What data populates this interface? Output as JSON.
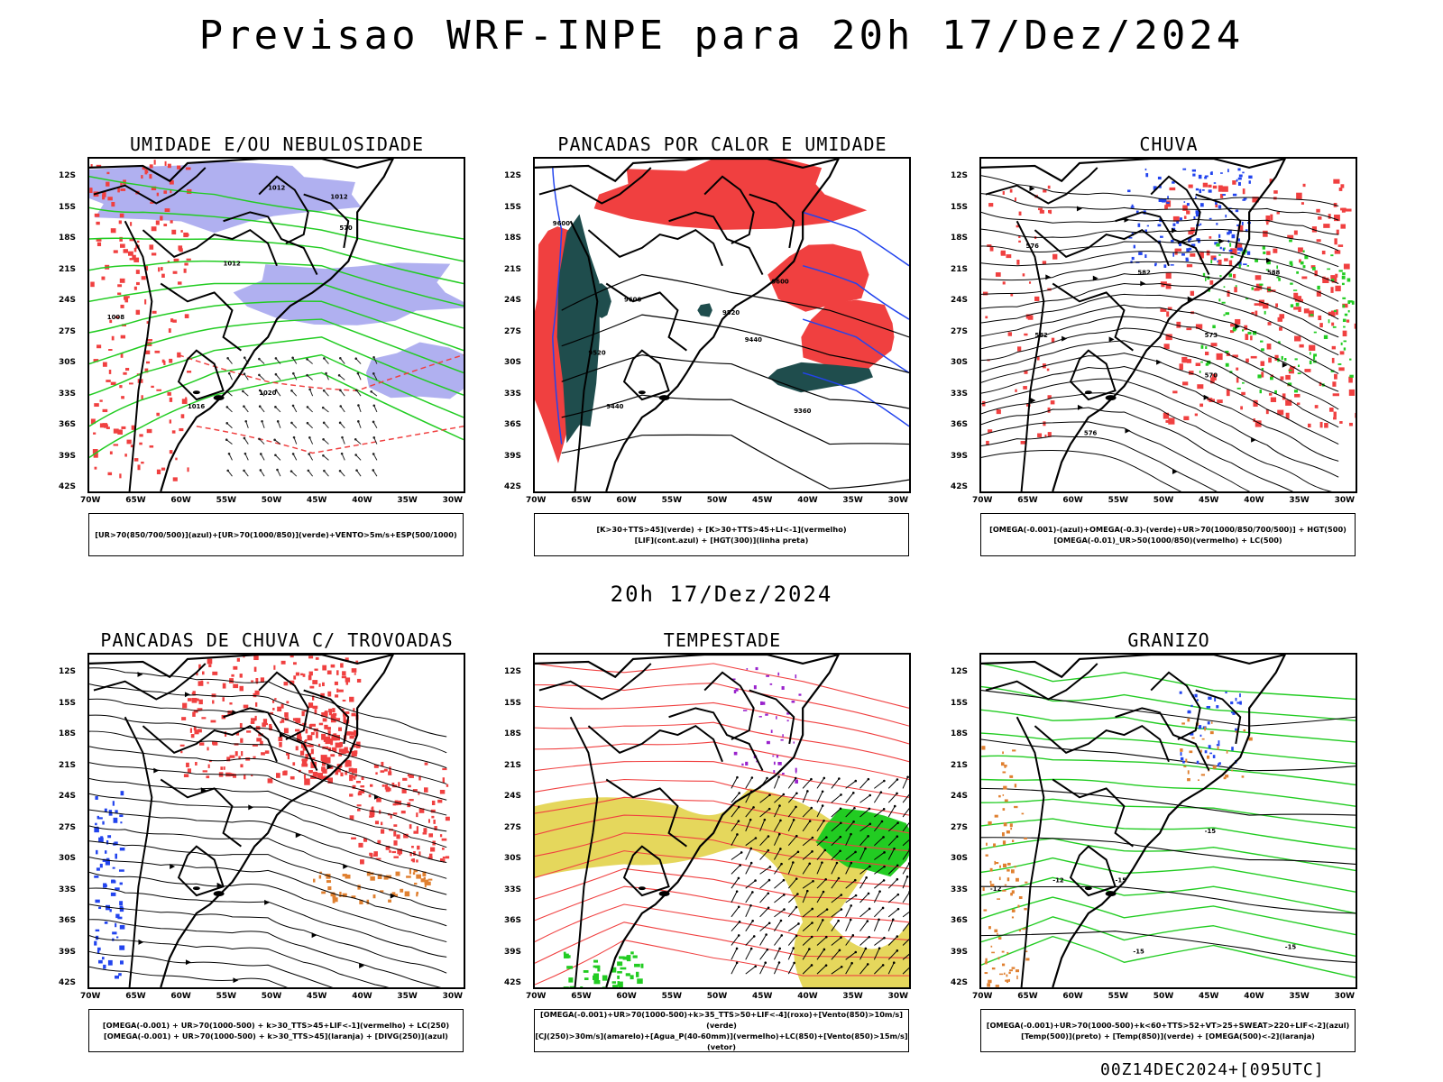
{
  "title": "Previsao WRF-INPE  para 20h 17/Dez/2024",
  "mid_title": "20h 17/Dez/2024",
  "footer": "00Z14DEC2024+[095UTC]",
  "axes": {
    "lat_labels": [
      "12S",
      "15S",
      "18S",
      "21S",
      "24S",
      "27S",
      "30S",
      "33S",
      "36S",
      "39S",
      "42S"
    ],
    "lon_labels": [
      "70W",
      "65W",
      "60W",
      "55W",
      "50W",
      "45W",
      "40W",
      "35W",
      "30W"
    ]
  },
  "panels": [
    {
      "title": "UMIDADE E/OU NEBULOSIDADE",
      "legend": [
        "[UR>70(850/700/500)](azul)+[UR>70(1000/850)](verde)+VENTO>5m/s+ESP(500/1000)"
      ],
      "contour_labels": [
        "1012",
        "1012",
        "1012",
        "1008",
        "1016",
        "1020",
        "570"
      ]
    },
    {
      "title": "PANCADAS POR CALOR E UMIDADE",
      "legend": [
        "[K>30+TTS>45](verde) + [K>30+TTS>45+LI<-1](vermelho)",
        "[LIF](cont.azul) + [HGT(300)](linha preta)"
      ],
      "contour_labels": [
        "9600",
        "9600",
        "9520",
        "9520",
        "9440",
        "9440",
        "9360",
        "9600"
      ]
    },
    {
      "title": "CHUVA",
      "legend": [
        "[OMEGA(-0.001)-(azul)+OMEGA(-0.3)-(verde)+UR>70(1000/850/700/500)] + HGT(500)",
        "[OMEGA(-0.01)_UR>50(1000/850)(vermelho) + LC(500)"
      ],
      "contour_labels": [
        "582",
        "582",
        "576",
        "573",
        "570",
        "588",
        "576"
      ]
    },
    {
      "title": "PANCADAS DE CHUVA C/ TROVOADAS",
      "legend": [
        "[OMEGA(-0.001) + UR>70(1000-500) + k>30_TTS>45+LIF<-1](vermelho) + LC(250)",
        "[OMEGA(-0.001) + UR>70(1000-500) + k>30_TTS>45](laranja) + [DIVG(250)](azul)"
      ],
      "contour_labels": []
    },
    {
      "title": "TEMPESTADE",
      "legend": [
        "[OMEGA(-0.001)+UR>70(1000-500)+k>35_TTS>50+LIF<-4](roxo)+[Vento(850)>10m/s](verde)",
        "[CJ(250)>30m/s](amarelo)+[Agua_P(40-60mm)](vermelho)+LC(850)+[Vento(850)>15m/s](vetor)"
      ],
      "contour_labels": []
    },
    {
      "title": "GRANIZO",
      "legend": [
        "[OMEGA(-0.001)+UR>70(1000-500)+k<60+TTS>52+VT>25+SWEAT>220+LIF<-2](azul)",
        "[Temp(500)](preto) + [Temp(850)](verde) + [OMEGA(500)<-2](laranja)"
      ],
      "contour_labels": [
        "-12",
        "-15",
        "-12",
        "-15",
        "-15",
        "-15"
      ]
    }
  ],
  "colors": {
    "red": "#f04040",
    "green": "#22cc22",
    "blue": "#2244ee",
    "lavender": "#b0b0f0",
    "darkteal": "#1f4d4d",
    "yellow": "#e0d040",
    "orange": "#e08030",
    "purple": "#9922cc"
  }
}
